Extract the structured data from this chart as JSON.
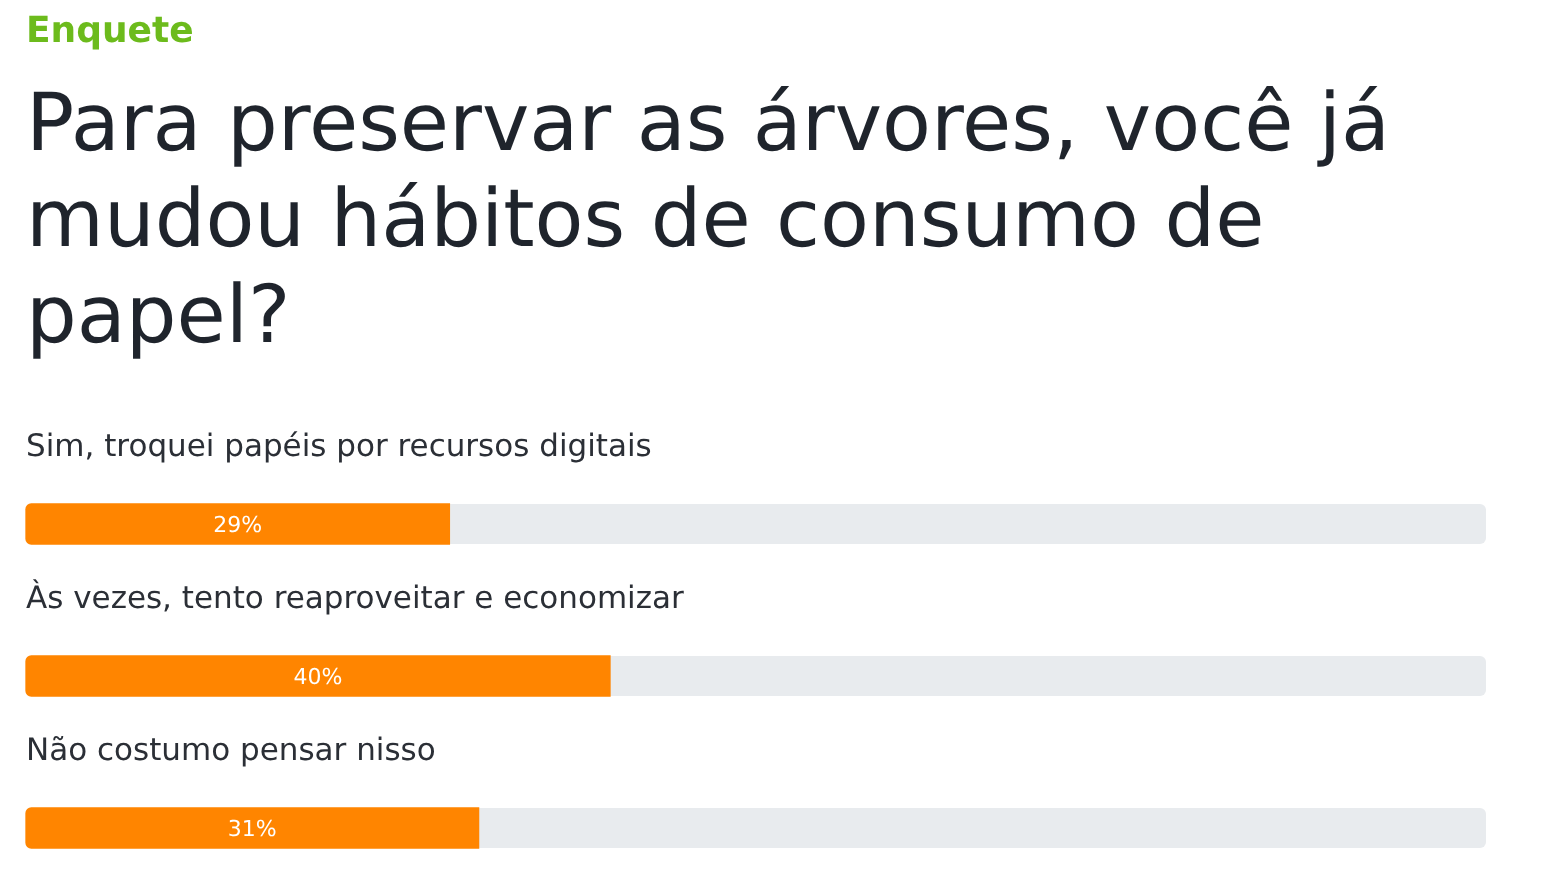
{
  "chart_data": {
    "type": "bar",
    "subtitle": "Enquete",
    "title": "Para preservar as árvores, você já mudou hábitos de consumo de papel?",
    "categories": [
      "Sim, troquei papéis por recursos digitais",
      "Às vezes, tento reaproveitar e economizar",
      "Não costumo pensar nisso"
    ],
    "values": [
      29,
      40,
      31
    ],
    "value_labels": [
      "29%",
      "40%",
      "31%"
    ],
    "color": "#ff8500",
    "orientation": "horizontal",
    "xlim": [
      0,
      100
    ],
    "tick_labels": "y",
    "legend": false
  }
}
